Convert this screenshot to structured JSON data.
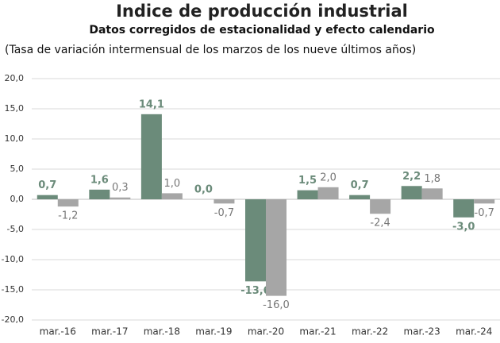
{
  "chart_data": {
    "type": "bar",
    "title": "Indice de producción industrial",
    "subtitle": "Datos corregidos de estacionalidad y efecto calendario",
    "note": "(Tasa de variación intermensual de los marzos de los nueve últimos años)",
    "categories": [
      "mar.-16",
      "mar.-17",
      "mar.-18",
      "mar.-19",
      "mar.-20",
      "mar.-21",
      "mar.-22",
      "mar.-23",
      "mar.-24"
    ],
    "series": [
      {
        "color": "#6b8b7a",
        "values": [
          0.7,
          1.6,
          14.1,
          0.0,
          -13.6,
          1.5,
          0.7,
          2.2,
          -3.0
        ],
        "value_labels": [
          "0,7",
          "1,6",
          "14,1",
          "0,0",
          "-13,6",
          "1,5",
          "0,7",
          "2,2",
          "-3,0"
        ]
      },
      {
        "color": "#a6a6a6",
        "values": [
          -1.2,
          0.3,
          1.0,
          -0.7,
          -16.0,
          2.0,
          -2.4,
          1.8,
          -0.7
        ],
        "value_labels": [
          "-1,2",
          "0,3",
          "1,0",
          "-0,7",
          "-16,0",
          "2,0",
          "-2,4",
          "1,8",
          "-0,7"
        ]
      }
    ],
    "ylim": [
      -20,
      20
    ],
    "yticks": [
      {
        "value": -20,
        "label": "-20,0"
      },
      {
        "value": -15,
        "label": "-15,0"
      },
      {
        "value": -10,
        "label": "-10,0"
      },
      {
        "value": -5,
        "label": "-5,0"
      },
      {
        "value": 0,
        "label": "0,0"
      },
      {
        "value": 5,
        "label": "5,0"
      },
      {
        "value": 10,
        "label": "10,0"
      },
      {
        "value": 15,
        "label": "15,0"
      },
      {
        "value": 20,
        "label": "20,0"
      }
    ],
    "grid": true
  }
}
